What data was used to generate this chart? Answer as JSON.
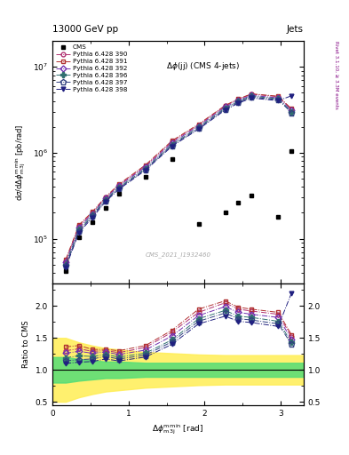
{
  "title_top": "13000 GeV pp",
  "title_right": "Jets",
  "plot_title": "Δφ(jj) (CMS 4-jets)",
  "watermark": "CMS_2021_I1932460",
  "cms_x": [
    0.175,
    0.35,
    0.524,
    0.698,
    0.873,
    1.222,
    1.571,
    1.92,
    2.269,
    2.443,
    2.618,
    2.967,
    3.14
  ],
  "cms_y": [
    42000.0,
    105000.0,
    155000.0,
    230000.0,
    330000.0,
    520000.0,
    850000.0,
    150000.0,
    200000.0,
    260000.0,
    320000.0,
    180000.0,
    1050000.0
  ],
  "series": [
    {
      "label": "Pythia 6.428 390",
      "color": "#b03070",
      "marker": "o",
      "fillstyle": "none",
      "linestyle": "-.",
      "x": [
        0.175,
        0.35,
        0.524,
        0.698,
        0.873,
        1.222,
        1.571,
        1.92,
        2.269,
        2.443,
        2.618,
        2.967,
        3.14
      ],
      "y": [
        55000.0,
        140000.0,
        200000.0,
        300000.0,
        420000.0,
        700000.0,
        1350000.0,
        2100000.0,
        3500000.0,
        4200000.0,
        4800000.0,
        4500000.0,
        3200000.0
      ]
    },
    {
      "label": "Pythia 6.428 391",
      "color": "#b03030",
      "marker": "s",
      "fillstyle": "none",
      "linestyle": "-.",
      "x": [
        0.175,
        0.35,
        0.524,
        0.698,
        0.873,
        1.222,
        1.571,
        1.92,
        2.269,
        2.443,
        2.618,
        2.967,
        3.14
      ],
      "y": [
        57000.0,
        145000.0,
        205000.0,
        305000.0,
        430000.0,
        720000.0,
        1380000.0,
        2150000.0,
        3550000.0,
        4250000.0,
        4850000.0,
        4550000.0,
        3250000.0
      ]
    },
    {
      "label": "Pythia 6.428 392",
      "color": "#7030b0",
      "marker": "D",
      "fillstyle": "none",
      "linestyle": "-.",
      "x": [
        0.175,
        0.35,
        0.524,
        0.698,
        0.873,
        1.222,
        1.571,
        1.92,
        2.269,
        2.443,
        2.618,
        2.967,
        3.14
      ],
      "y": [
        53000.0,
        135000.0,
        195000.0,
        295000.0,
        410000.0,
        680000.0,
        1300000.0,
        2050000.0,
        3400000.0,
        4100000.0,
        4650000.0,
        4350000.0,
        3100000.0
      ]
    },
    {
      "label": "Pythia 6.428 396",
      "color": "#307070",
      "marker": "P",
      "fillstyle": "full",
      "linestyle": "-.",
      "x": [
        0.175,
        0.35,
        0.524,
        0.698,
        0.873,
        1.222,
        1.571,
        1.92,
        2.269,
        2.443,
        2.618,
        2.967,
        3.14
      ],
      "y": [
        50000.0,
        128000.0,
        188000.0,
        285000.0,
        395000.0,
        655000.0,
        1250000.0,
        1980000.0,
        3300000.0,
        3980000.0,
        4550000.0,
        4250000.0,
        3000000.0
      ]
    },
    {
      "label": "Pythia 6.428 397",
      "color": "#304080",
      "marker": "p",
      "fillstyle": "none",
      "linestyle": "-.",
      "x": [
        0.175,
        0.35,
        0.524,
        0.698,
        0.873,
        1.222,
        1.571,
        1.92,
        2.269,
        2.443,
        2.618,
        2.967,
        3.14
      ],
      "y": [
        48000.0,
        122000.0,
        182000.0,
        278000.0,
        385000.0,
        640000.0,
        1220000.0,
        1930000.0,
        3220000.0,
        3880000.0,
        4440000.0,
        4140000.0,
        2930000.0
      ]
    },
    {
      "label": "Pythia 6.428 398",
      "color": "#202080",
      "marker": "v",
      "fillstyle": "full",
      "linestyle": "-.",
      "x": [
        0.175,
        0.35,
        0.524,
        0.698,
        0.873,
        1.222,
        1.571,
        1.92,
        2.269,
        2.443,
        2.618,
        2.967,
        3.14
      ],
      "y": [
        46000.0,
        118000.0,
        175000.0,
        270000.0,
        375000.0,
        625000.0,
        1190000.0,
        1880000.0,
        3140000.0,
        3780000.0,
        4330000.0,
        4040000.0,
        4600000.0
      ]
    }
  ],
  "ratio_series": [
    {
      "color": "#b03070",
      "marker": "o",
      "fillstyle": "none",
      "linestyle": "-.",
      "x": [
        0.175,
        0.35,
        0.524,
        0.698,
        0.873,
        1.222,
        1.571,
        1.92,
        2.269,
        2.443,
        2.618,
        2.967,
        3.14
      ],
      "y": [
        1.3,
        1.33,
        1.29,
        1.3,
        1.27,
        1.35,
        1.59,
        1.9,
        2.05,
        1.95,
        1.92,
        1.87,
        1.52
      ]
    },
    {
      "color": "#b03030",
      "marker": "s",
      "fillstyle": "none",
      "linestyle": "-.",
      "x": [
        0.175,
        0.35,
        0.524,
        0.698,
        0.873,
        1.222,
        1.571,
        1.92,
        2.269,
        2.443,
        2.618,
        2.967,
        3.14
      ],
      "y": [
        1.36,
        1.38,
        1.32,
        1.32,
        1.3,
        1.38,
        1.62,
        1.95,
        2.08,
        1.98,
        1.95,
        1.9,
        1.55
      ]
    },
    {
      "color": "#7030b0",
      "marker": "D",
      "fillstyle": "none",
      "linestyle": "-.",
      "x": [
        0.175,
        0.35,
        0.524,
        0.698,
        0.873,
        1.222,
        1.571,
        1.92,
        2.269,
        2.443,
        2.618,
        2.967,
        3.14
      ],
      "y": [
        1.26,
        1.29,
        1.26,
        1.28,
        1.24,
        1.31,
        1.53,
        1.85,
        1.99,
        1.9,
        1.87,
        1.82,
        1.48
      ]
    },
    {
      "color": "#307070",
      "marker": "P",
      "fillstyle": "full",
      "linestyle": "-.",
      "x": [
        0.175,
        0.35,
        0.524,
        0.698,
        0.873,
        1.222,
        1.571,
        1.92,
        2.269,
        2.443,
        2.618,
        2.967,
        3.14
      ],
      "y": [
        1.19,
        1.22,
        1.21,
        1.24,
        1.2,
        1.26,
        1.47,
        1.8,
        1.93,
        1.84,
        1.82,
        1.76,
        1.43
      ]
    },
    {
      "color": "#304080",
      "marker": "p",
      "fillstyle": "none",
      "linestyle": "-.",
      "x": [
        0.175,
        0.35,
        0.524,
        0.698,
        0.873,
        1.222,
        1.571,
        1.92,
        2.269,
        2.443,
        2.618,
        2.967,
        3.14
      ],
      "y": [
        1.14,
        1.16,
        1.17,
        1.21,
        1.17,
        1.23,
        1.44,
        1.76,
        1.89,
        1.8,
        1.78,
        1.72,
        1.4
      ]
    },
    {
      "color": "#202080",
      "marker": "v",
      "fillstyle": "full",
      "linestyle": "-.",
      "x": [
        0.175,
        0.35,
        0.524,
        0.698,
        0.873,
        1.222,
        1.571,
        1.92,
        2.269,
        2.443,
        2.618,
        2.967,
        3.14
      ],
      "y": [
        1.1,
        1.12,
        1.13,
        1.17,
        1.14,
        1.2,
        1.4,
        1.72,
        1.84,
        1.76,
        1.74,
        1.68,
        2.2
      ]
    }
  ],
  "yellow_band_x": [
    0.0,
    0.175,
    0.35,
    0.524,
    0.698,
    0.873,
    1.222,
    1.571,
    1.92,
    2.269,
    2.443,
    2.618,
    2.967,
    3.14,
    3.3
  ],
  "yellow_band_low": [
    0.5,
    0.5,
    0.57,
    0.62,
    0.66,
    0.68,
    0.72,
    0.74,
    0.76,
    0.77,
    0.77,
    0.77,
    0.77,
    0.77,
    0.77
  ],
  "yellow_band_high": [
    1.5,
    1.5,
    1.43,
    1.38,
    1.34,
    1.32,
    1.28,
    1.26,
    1.24,
    1.23,
    1.23,
    1.23,
    1.23,
    1.23,
    1.23
  ],
  "green_band_x": [
    0.0,
    0.175,
    0.35,
    0.524,
    0.698,
    0.873,
    1.222,
    1.571,
    1.92,
    2.269,
    2.443,
    2.618,
    2.967,
    3.14,
    3.3
  ],
  "green_band_low": [
    0.8,
    0.8,
    0.83,
    0.85,
    0.87,
    0.87,
    0.89,
    0.89,
    0.89,
    0.89,
    0.89,
    0.89,
    0.89,
    0.89,
    0.89
  ],
  "green_band_high": [
    1.2,
    1.2,
    1.17,
    1.15,
    1.13,
    1.13,
    1.11,
    1.11,
    1.11,
    1.11,
    1.11,
    1.11,
    1.11,
    1.11,
    1.11
  ],
  "ylim_main": [
    30000.0,
    20000000.0
  ],
  "ylim_ratio": [
    0.45,
    2.35
  ],
  "xlim": [
    0.0,
    3.3
  ],
  "yticks_ratio": [
    0.5,
    1.0,
    1.5,
    2.0
  ]
}
